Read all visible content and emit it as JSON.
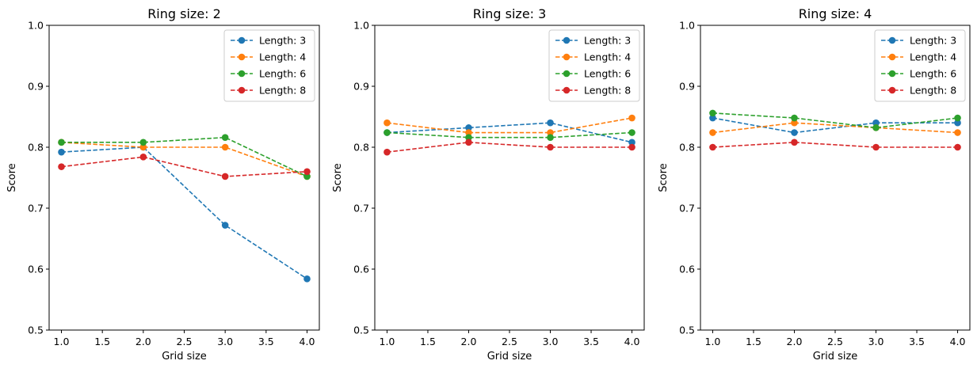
{
  "chart_data": [
    {
      "type": "line",
      "title": "Ring size: 2",
      "xlabel": "Grid size",
      "ylabel": "Score",
      "xlim": [
        0.85,
        4.15
      ],
      "ylim": [
        0.5,
        1.0
      ],
      "xticks": [
        "1.0",
        "1.5",
        "2.0",
        "2.5",
        "3.0",
        "3.5",
        "4.0"
      ],
      "yticks": [
        "0.5",
        "0.6",
        "0.7",
        "0.8",
        "0.9",
        "1.0"
      ],
      "legend": "top-right",
      "x": [
        1,
        2,
        3,
        4
      ],
      "series": [
        {
          "name": "Length: 3",
          "color": "#1f77b4",
          "values": [
            0.792,
            0.8,
            0.672,
            0.584
          ]
        },
        {
          "name": "Length: 4",
          "color": "#ff7f0e",
          "values": [
            0.808,
            0.8,
            0.8,
            0.752
          ]
        },
        {
          "name": "Length: 6",
          "color": "#2ca02c",
          "values": [
            0.808,
            0.808,
            0.816,
            0.752
          ]
        },
        {
          "name": "Length: 8",
          "color": "#d62728",
          "values": [
            0.768,
            0.784,
            0.752,
            0.76
          ]
        }
      ]
    },
    {
      "type": "line",
      "title": "Ring size: 3",
      "xlabel": "Grid size",
      "ylabel": "Score",
      "xlim": [
        0.85,
        4.15
      ],
      "ylim": [
        0.5,
        1.0
      ],
      "xticks": [
        "1.0",
        "1.5",
        "2.0",
        "2.5",
        "3.0",
        "3.5",
        "4.0"
      ],
      "yticks": [
        "0.5",
        "0.6",
        "0.7",
        "0.8",
        "0.9",
        "1.0"
      ],
      "legend": "top-right",
      "x": [
        1,
        2,
        3,
        4
      ],
      "series": [
        {
          "name": "Length: 3",
          "color": "#1f77b4",
          "values": [
            0.824,
            0.832,
            0.84,
            0.808
          ]
        },
        {
          "name": "Length: 4",
          "color": "#ff7f0e",
          "values": [
            0.84,
            0.824,
            0.824,
            0.848
          ]
        },
        {
          "name": "Length: 6",
          "color": "#2ca02c",
          "values": [
            0.824,
            0.816,
            0.816,
            0.824
          ]
        },
        {
          "name": "Length: 8",
          "color": "#d62728",
          "values": [
            0.792,
            0.808,
            0.8,
            0.8
          ]
        }
      ]
    },
    {
      "type": "line",
      "title": "Ring size: 4",
      "xlabel": "Grid size",
      "ylabel": "Score",
      "xlim": [
        0.85,
        4.15
      ],
      "ylim": [
        0.5,
        1.0
      ],
      "xticks": [
        "1.0",
        "1.5",
        "2.0",
        "2.5",
        "3.0",
        "3.5",
        "4.0"
      ],
      "yticks": [
        "0.5",
        "0.6",
        "0.7",
        "0.8",
        "0.9",
        "1.0"
      ],
      "legend": "top-right",
      "x": [
        1,
        2,
        3,
        4
      ],
      "series": [
        {
          "name": "Length: 3",
          "color": "#1f77b4",
          "values": [
            0.848,
            0.824,
            0.84,
            0.84
          ]
        },
        {
          "name": "Length: 4",
          "color": "#ff7f0e",
          "values": [
            0.824,
            0.84,
            0.832,
            0.824
          ]
        },
        {
          "name": "Length: 6",
          "color": "#2ca02c",
          "values": [
            0.856,
            0.848,
            0.832,
            0.848
          ]
        },
        {
          "name": "Length: 8",
          "color": "#d62728",
          "values": [
            0.8,
            0.808,
            0.8,
            0.8
          ]
        }
      ]
    }
  ]
}
